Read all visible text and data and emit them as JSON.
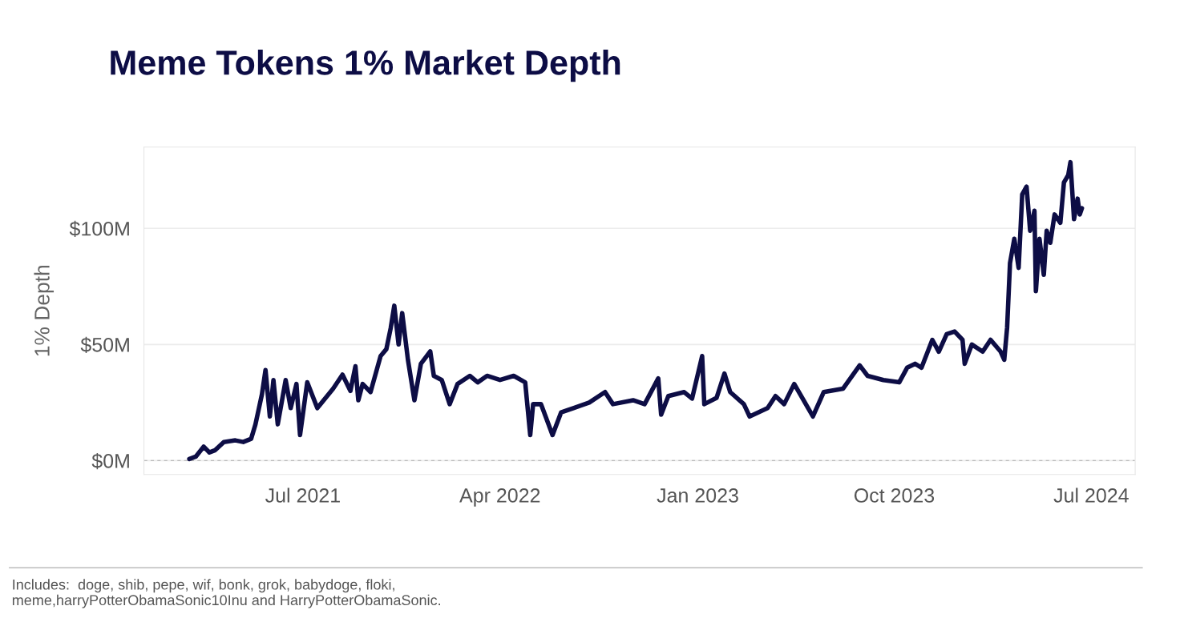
{
  "chart_data": {
    "type": "line",
    "title": "Meme Tokens 1% Market Depth",
    "ylabel": "1% Depth",
    "annotations": [
      "Includes:  doge, shib, pepe, wif, bonk, grok, babydoge, floki,\nmeme,harryPotterObamaSonic10Inu and HarryPotterObamaSonic."
    ],
    "x": [
      "2021-01-24",
      "2021-02-02",
      "2021-02-13",
      "2021-02-21",
      "2021-03-01",
      "2021-03-13",
      "2021-03-29",
      "2021-04-09",
      "2021-04-20",
      "2021-04-26",
      "2021-05-05",
      "2021-05-10",
      "2021-05-16",
      "2021-05-21",
      "2021-05-27",
      "2021-06-07",
      "2021-06-14",
      "2021-06-22",
      "2021-06-27",
      "2021-07-07",
      "2021-07-21",
      "2021-08-12",
      "2021-08-25",
      "2021-09-05",
      "2021-09-12",
      "2021-09-16",
      "2021-09-22",
      "2021-10-03",
      "2021-10-17",
      "2021-10-25",
      "2021-10-31",
      "2021-11-05",
      "2021-11-11",
      "2021-11-16",
      "2021-11-24",
      "2021-12-03",
      "2021-12-12",
      "2021-12-25",
      "2021-12-30",
      "2022-01-10",
      "2022-01-21",
      "2022-02-01",
      "2022-02-18",
      "2022-03-01",
      "2022-03-14",
      "2022-04-01",
      "2022-04-20",
      "2022-05-06",
      "2022-05-13",
      "2022-05-17",
      "2022-05-28",
      "2022-06-13",
      "2022-06-25",
      "2022-07-12",
      "2022-08-03",
      "2022-08-25",
      "2022-09-05",
      "2022-10-03",
      "2022-10-19",
      "2022-11-07",
      "2022-11-11",
      "2022-11-21",
      "2022-12-13",
      "2022-12-24",
      "2023-01-07",
      "2023-01-10",
      "2023-01-27",
      "2023-02-07",
      "2023-02-15",
      "2023-03-06",
      "2023-03-14",
      "2023-04-08",
      "2023-04-19",
      "2023-05-01",
      "2023-05-15",
      "2023-05-28",
      "2023-06-10",
      "2023-06-25",
      "2023-07-22",
      "2023-08-14",
      "2023-08-25",
      "2023-09-16",
      "2023-10-08",
      "2023-10-19",
      "2023-10-30",
      "2023-11-08",
      "2023-11-23",
      "2023-12-02",
      "2023-12-13",
      "2023-12-24",
      "2024-01-04",
      "2024-01-07",
      "2024-01-17",
      "2024-02-01",
      "2024-02-12",
      "2024-02-26",
      "2024-03-02",
      "2024-03-06",
      "2024-03-10",
      "2024-03-16",
      "2024-03-22",
      "2024-03-27",
      "2024-04-02",
      "2024-04-07",
      "2024-04-13",
      "2024-04-15",
      "2024-04-20",
      "2024-04-26",
      "2024-04-30",
      "2024-05-05",
      "2024-05-11",
      "2024-05-19",
      "2024-05-24",
      "2024-05-30",
      "2024-06-02",
      "2024-06-07",
      "2024-06-12",
      "2024-06-15",
      "2024-06-18"
    ],
    "series": [
      {
        "color": "#0d0d45",
        "values": [
          0.7,
          1.7,
          6,
          3.5,
          4.5,
          8,
          8.7,
          8,
          9.4,
          15.6,
          28.5,
          39,
          19,
          34.7,
          15.6,
          34.7,
          22.6,
          33,
          11,
          33.7,
          22.6,
          31,
          37,
          30,
          40.6,
          26,
          33,
          29.5,
          45,
          48,
          57,
          66.7,
          50,
          63.5,
          43.4,
          26,
          41.7,
          47,
          36.5,
          34.7,
          24.3,
          33,
          36.5,
          33.7,
          36.5,
          34.7,
          36.5,
          33.7,
          11,
          24.3,
          24.3,
          11,
          20.8,
          22.6,
          25,
          29.5,
          24.3,
          26,
          24.3,
          35.4,
          19.8,
          27.8,
          29.5,
          26.7,
          45,
          24.3,
          27,
          37.5,
          29.5,
          24.3,
          19,
          22.6,
          27.8,
          24.3,
          33,
          26,
          19,
          29.5,
          31,
          41,
          36.5,
          34.7,
          33.7,
          40,
          41.7,
          40,
          52,
          46.9,
          54.5,
          55.6,
          52,
          41.7,
          50,
          46.9,
          52,
          46.9,
          43.4,
          57.3,
          85,
          95.5,
          83,
          114.6,
          118,
          99,
          107.6,
          73,
          95.5,
          80,
          99,
          93.8,
          106,
          102.4,
          119.8,
          123,
          128.5,
          104,
          112.8,
          106,
          108.7
        ]
      }
    ],
    "xlim": [
      "2020-11-22",
      "2024-08-31"
    ],
    "xticks": [
      {
        "value": "2021-07-01",
        "label": "Jul 2021"
      },
      {
        "value": "2022-04-01",
        "label": "Apr 2022"
      },
      {
        "value": "2023-01-01",
        "label": "Jan 2023"
      },
      {
        "value": "2023-10-01",
        "label": "Oct 2023"
      },
      {
        "value": "2024-07-01",
        "label": "Jul 2024"
      }
    ],
    "ylim": [
      -6,
      135
    ],
    "yticks": [
      {
        "value": 0,
        "label": "$0M"
      },
      {
        "value": 50,
        "label": "$50M"
      },
      {
        "value": 100,
        "label": "$100M"
      }
    ],
    "ref_lines": [
      {
        "axis": "y",
        "value": 0,
        "color": "#bbbbbb",
        "line_style": "dashed"
      }
    ],
    "grid": "y",
    "legend": false,
    "marker": "none",
    "line_style": "solid"
  }
}
